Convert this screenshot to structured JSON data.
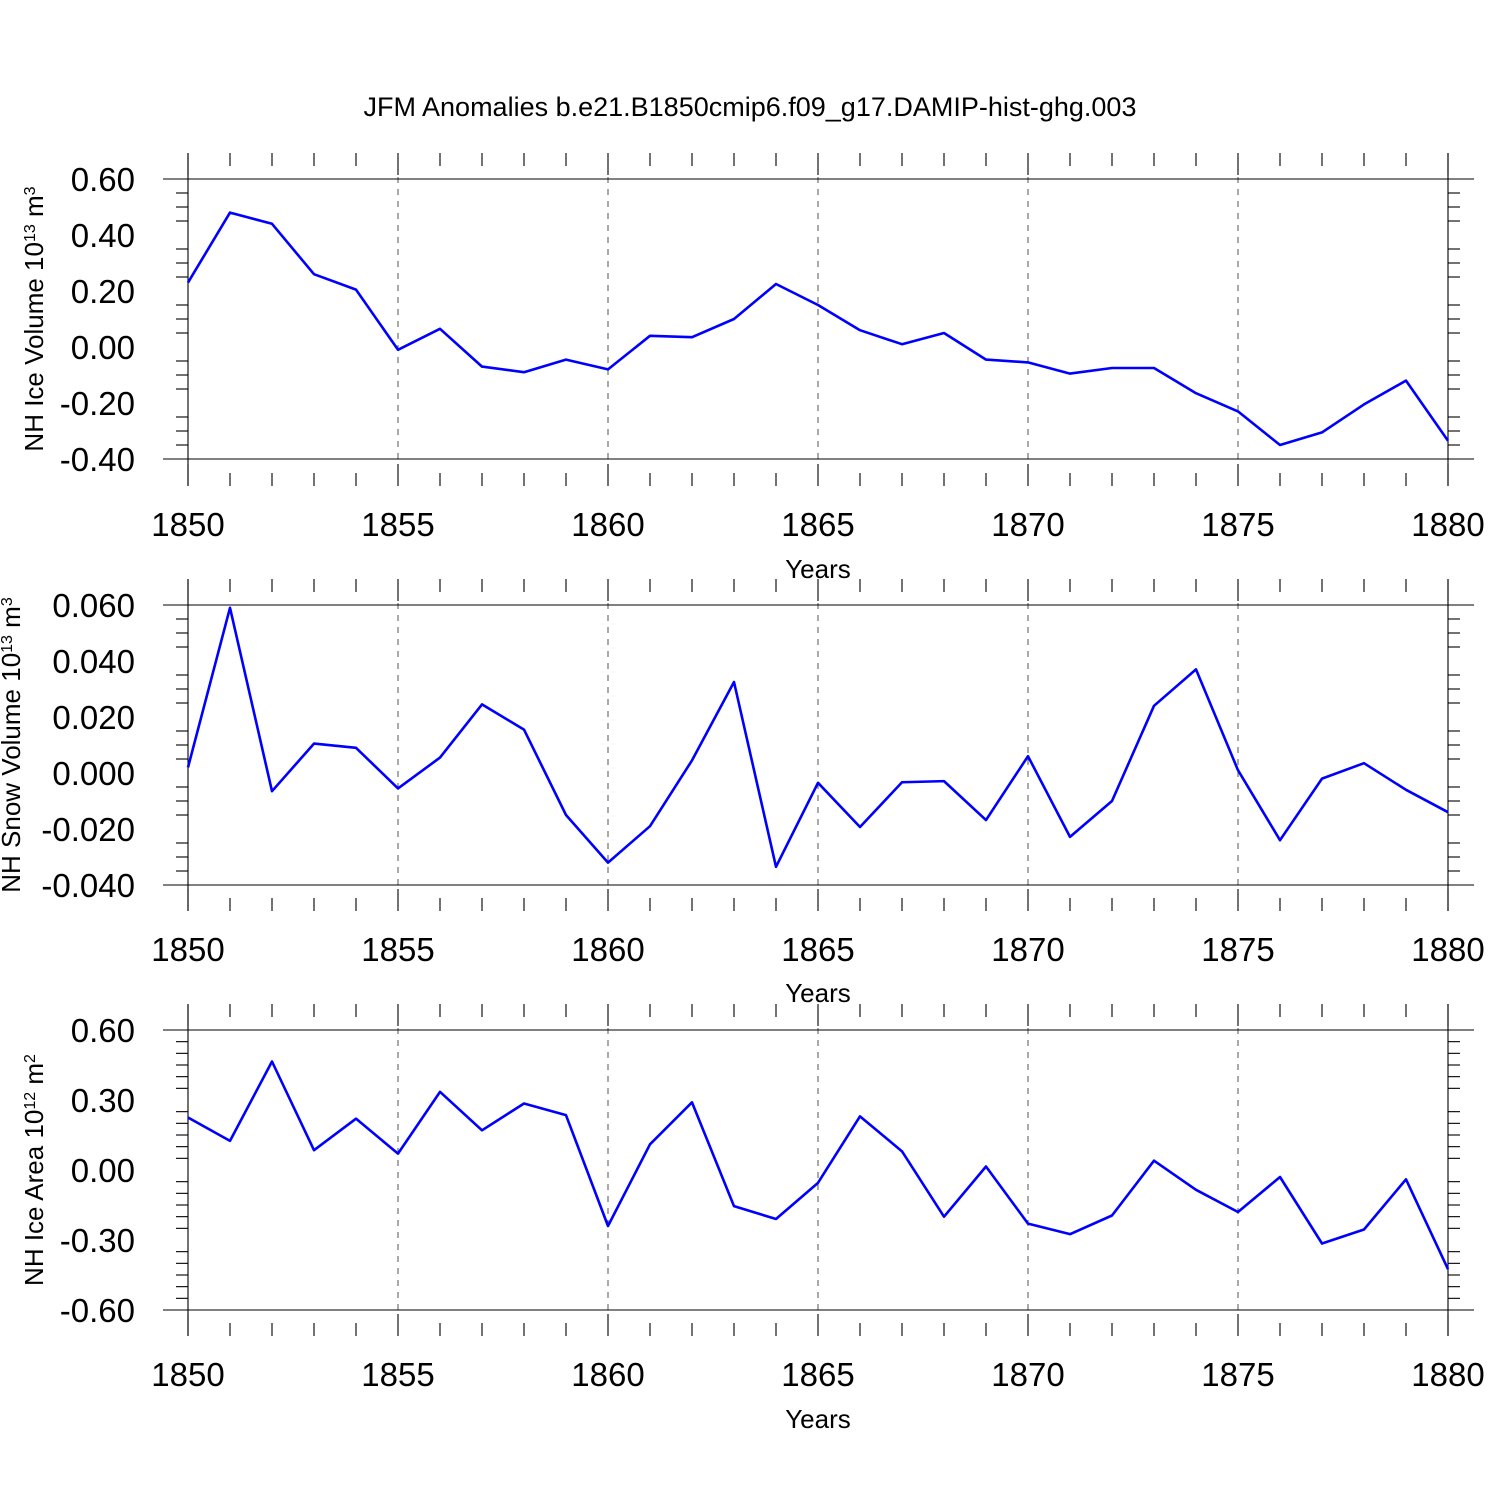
{
  "title": "JFM Anomalies b.e21.B1850cmip6.f09_g17.DAMIP-hist-ghg.003",
  "colors": {
    "series": "#0000ff",
    "axis": "#000000",
    "grid": "#555555"
  },
  "chart_data": [
    {
      "type": "line",
      "ylabel": {
        "text": "NH Ice Volume 10",
        "exp": "13",
        "unit": " m",
        "unit_exp": "3"
      },
      "xlabel": "Years",
      "xlim": [
        1850,
        1880
      ],
      "ylim": [
        -0.4,
        0.6
      ],
      "x_ticks": [
        "1850",
        "1855",
        "1860",
        "1865",
        "1870",
        "1875",
        "1880"
      ],
      "y_ticks": [
        {
          "v": 0.6,
          "label": "0.60"
        },
        {
          "v": 0.4,
          "label": "0.40"
        },
        {
          "v": 0.2,
          "label": "0.20"
        },
        {
          "v": 0.0,
          "label": "0.00"
        },
        {
          "v": -0.2,
          "label": "-0.20"
        },
        {
          "v": -0.4,
          "label": "-0.40"
        }
      ],
      "grid": "vertical dashed",
      "x": [
        1850,
        1851,
        1852,
        1853,
        1854,
        1855,
        1856,
        1857,
        1858,
        1859,
        1860,
        1861,
        1862,
        1863,
        1864,
        1865,
        1866,
        1867,
        1868,
        1869,
        1870,
        1871,
        1872,
        1873,
        1874,
        1875,
        1876,
        1877,
        1878,
        1879,
        1880
      ],
      "values": [
        0.23,
        0.48,
        0.44,
        0.26,
        0.205,
        -0.01,
        0.065,
        -0.07,
        -0.09,
        -0.045,
        -0.08,
        0.04,
        0.035,
        0.1,
        0.225,
        0.15,
        0.06,
        0.01,
        0.05,
        -0.045,
        -0.055,
        -0.095,
        -0.075,
        -0.075,
        -0.165,
        -0.23,
        -0.35,
        -0.305,
        -0.205,
        -0.12,
        -0.335
      ]
    },
    {
      "type": "line",
      "ylabel": {
        "text": "NH Snow Volume 10",
        "exp": "13",
        "unit": " m",
        "unit_exp": "3"
      },
      "xlabel": "Years",
      "xlim": [
        1850,
        1880
      ],
      "ylim": [
        -0.04,
        0.06
      ],
      "x_ticks": [
        "1850",
        "1855",
        "1860",
        "1865",
        "1870",
        "1875",
        "1880"
      ],
      "y_ticks": [
        {
          "v": 0.06,
          "label": "0.060"
        },
        {
          "v": 0.04,
          "label": "0.040"
        },
        {
          "v": 0.02,
          "label": "0.020"
        },
        {
          "v": 0.0,
          "label": "0.000"
        },
        {
          "v": -0.02,
          "label": "-0.020"
        },
        {
          "v": -0.04,
          "label": "-0.040"
        }
      ],
      "grid": "vertical dashed",
      "x": [
        1850,
        1851,
        1852,
        1853,
        1854,
        1855,
        1856,
        1857,
        1858,
        1859,
        1860,
        1861,
        1862,
        1863,
        1864,
        1865,
        1866,
        1867,
        1868,
        1869,
        1870,
        1871,
        1872,
        1873,
        1874,
        1875,
        1876,
        1877,
        1878,
        1879,
        1880
      ],
      "values": [
        0.002,
        0.059,
        -0.0065,
        0.0105,
        0.009,
        -0.0055,
        0.0055,
        0.0245,
        0.0155,
        -0.015,
        -0.032,
        -0.019,
        0.0045,
        0.0325,
        -0.0335,
        -0.0035,
        -0.0193,
        -0.0033,
        -0.0029,
        -0.0168,
        0.006,
        -0.0228,
        -0.01,
        0.024,
        0.037,
        0.001,
        -0.024,
        -0.002,
        0.0035,
        -0.006,
        -0.014
      ]
    },
    {
      "type": "line",
      "ylabel": {
        "text": "NH Ice Area 10",
        "exp": "12",
        "unit": " m",
        "unit_exp": "2"
      },
      "xlabel": "Years",
      "xlim": [
        1850,
        1880
      ],
      "ylim": [
        -0.6,
        0.6
      ],
      "x_ticks": [
        "1850",
        "1855",
        "1860",
        "1865",
        "1870",
        "1875",
        "1880"
      ],
      "y_ticks": [
        {
          "v": 0.6,
          "label": "0.60"
        },
        {
          "v": 0.3,
          "label": "0.30"
        },
        {
          "v": 0.0,
          "label": "0.00"
        },
        {
          "v": -0.3,
          "label": "-0.30"
        },
        {
          "v": -0.6,
          "label": "-0.60"
        }
      ],
      "grid": "vertical dashed",
      "x": [
        1850,
        1851,
        1852,
        1853,
        1854,
        1855,
        1856,
        1857,
        1858,
        1859,
        1860,
        1861,
        1862,
        1863,
        1864,
        1865,
        1866,
        1867,
        1868,
        1869,
        1870,
        1871,
        1872,
        1873,
        1874,
        1875,
        1876,
        1877,
        1878,
        1879,
        1880
      ],
      "values": [
        0.225,
        0.125,
        0.465,
        0.085,
        0.22,
        0.07,
        0.335,
        0.17,
        0.285,
        0.235,
        -0.24,
        0.11,
        0.29,
        -0.155,
        -0.21,
        -0.055,
        0.23,
        0.08,
        -0.2,
        0.015,
        -0.23,
        -0.275,
        -0.195,
        0.04,
        -0.085,
        -0.18,
        -0.03,
        -0.315,
        -0.255,
        -0.04,
        -0.425
      ]
    }
  ]
}
